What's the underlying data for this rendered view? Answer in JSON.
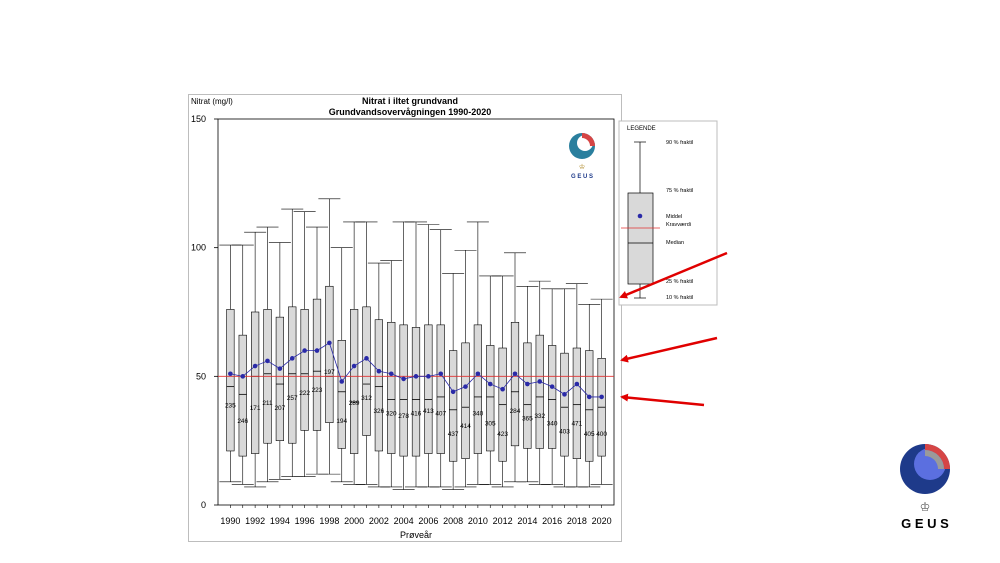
{
  "chart_data": {
    "type": "box",
    "title": "Nitrat i iltet grundvand",
    "subtitle": "Grundvandsovervågningen 1990-2020",
    "ylabel": "Nitrat (mg/l)",
    "xlabel": "Prøveår",
    "ylim": [
      0,
      150
    ],
    "yticks": [
      0,
      50,
      100,
      150
    ],
    "xticks": [
      "1990",
      "1992",
      "1994",
      "1996",
      "1998",
      "2000",
      "2002",
      "2004",
      "2006",
      "2008",
      "2010",
      "2012",
      "2014",
      "2016",
      "2018",
      "2020"
    ],
    "threshold": {
      "name": "Kravværdi",
      "value": 50,
      "color": "#e03030"
    },
    "grid": false,
    "legend_position": "right-outside",
    "series_colors": {
      "box_fill": "#d9d9d9",
      "mean": "#2a2aa8"
    },
    "years": [
      1990,
      1991,
      1992,
      1993,
      1994,
      1995,
      1996,
      1997,
      1998,
      1999,
      2000,
      2001,
      2002,
      2003,
      2004,
      2005,
      2006,
      2007,
      2008,
      2009,
      2010,
      2011,
      2012,
      2013,
      2014,
      2015,
      2016,
      2017,
      2018,
      2019,
      2020
    ],
    "p10": [
      9,
      8,
      7,
      9,
      10,
      11,
      11,
      12,
      12,
      9,
      8,
      8,
      7,
      7,
      6,
      7,
      7,
      7,
      6,
      7,
      8,
      8,
      7,
      9,
      9,
      8,
      8,
      7,
      7,
      7,
      8
    ],
    "p25": [
      21,
      19,
      20,
      24,
      25,
      24,
      29,
      29,
      32,
      22,
      20,
      27,
      21,
      20,
      19,
      19,
      20,
      20,
      17,
      18,
      20,
      21,
      17,
      23,
      22,
      22,
      22,
      19,
      18,
      17,
      19
    ],
    "median": [
      46,
      43,
      50,
      51,
      47,
      51,
      51,
      52,
      50,
      44,
      40,
      47,
      46,
      41,
      41,
      41,
      41,
      42,
      37,
      38,
      42,
      42,
      39,
      44,
      39,
      42,
      41,
      38,
      39,
      37,
      38
    ],
    "p75": [
      76,
      66,
      75,
      76,
      73,
      77,
      76,
      80,
      85,
      64,
      76,
      77,
      72,
      71,
      70,
      69,
      70,
      70,
      60,
      63,
      70,
      62,
      61,
      71,
      63,
      66,
      62,
      59,
      61,
      60,
      57
    ],
    "p90": [
      101,
      101,
      106,
      108,
      102,
      115,
      114,
      108,
      119,
      100,
      110,
      110,
      94,
      95,
      110,
      110,
      109,
      107,
      90,
      99,
      110,
      89,
      89,
      98,
      85,
      87,
      84,
      84,
      86,
      78,
      80
    ],
    "mean": [
      51,
      50,
      54,
      56,
      53,
      57,
      60,
      60,
      63,
      48,
      54,
      57,
      52,
      51,
      49,
      50,
      50,
      51,
      44,
      46,
      51,
      47,
      45,
      51,
      47,
      48,
      46,
      43,
      47,
      42,
      42
    ],
    "counts": [
      "235",
      "246",
      "171",
      "211",
      "207",
      "257",
      "222",
      "223",
      "197",
      "194",
      "289",
      "312",
      "326",
      "320",
      "278",
      "416",
      "413",
      "407",
      "437",
      "414",
      "340",
      "305",
      "423",
      "284",
      "365",
      "332",
      "340",
      "403",
      "471",
      "405",
      "400"
    ],
    "count_y": [
      39,
      33,
      38,
      40,
      38,
      42,
      44,
      45,
      52,
      33,
      40,
      42,
      37,
      36,
      35,
      36,
      37,
      36,
      28,
      31,
      36,
      32,
      28,
      37,
      34,
      35,
      32,
      29,
      32,
      28,
      28
    ]
  },
  "legend": {
    "title": "LEGENDE",
    "items": {
      "p90": "90 % fraktil",
      "p75": "75 % fraktil",
      "mean": "Middel",
      "threshold": "Kravværdi",
      "median": "Median",
      "p25": "25 % fraktil",
      "p10": "10 % fraktil"
    }
  },
  "logos": {
    "geus_text": "G E U S"
  },
  "annotations": {
    "arrow_color": "#e00000",
    "arrow_count": 3
  },
  "colors": {
    "geus_blue": "#1e3a8a",
    "geus_teal": "#2a7f9e",
    "geus_red": "#d64545"
  }
}
